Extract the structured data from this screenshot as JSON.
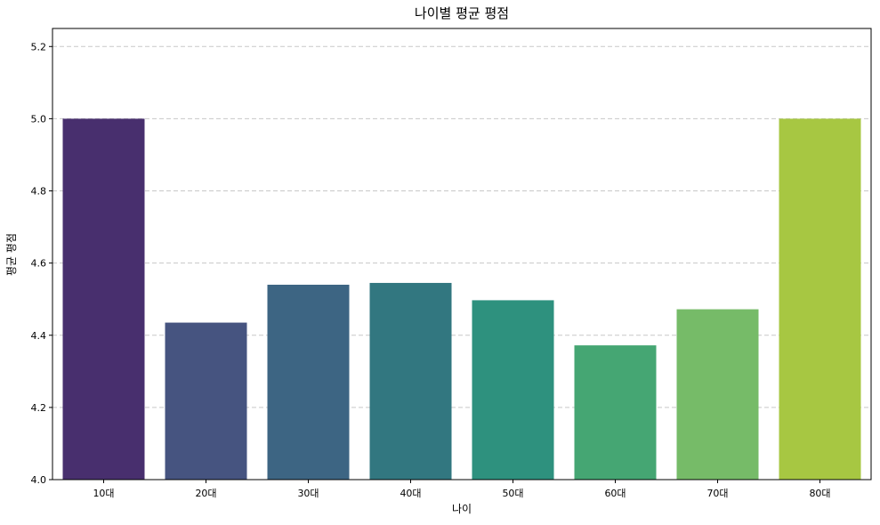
{
  "chart_data": {
    "type": "bar",
    "title": "나이별 평균 평점",
    "xlabel": "나이",
    "ylabel": "평균 평점",
    "categories": [
      "10대",
      "20대",
      "30대",
      "40대",
      "50대",
      "60대",
      "70대",
      "80대"
    ],
    "values": [
      5.0,
      4.435,
      4.54,
      4.545,
      4.497,
      4.372,
      4.472,
      5.0
    ],
    "ylim": [
      4.0,
      5.25
    ],
    "yticks": [
      4.0,
      4.2,
      4.4,
      4.6,
      4.8,
      5.0,
      5.2
    ],
    "ytick_labels": [
      "4.0",
      "4.2",
      "4.4",
      "4.6",
      "4.8",
      "5.0",
      "5.2"
    ],
    "grid": "horizontal-dashed",
    "colors": [
      "#482f6e",
      "#465480",
      "#3d6583",
      "#327780",
      "#2e917e",
      "#45a673",
      "#76bb68",
      "#a7c742"
    ]
  }
}
